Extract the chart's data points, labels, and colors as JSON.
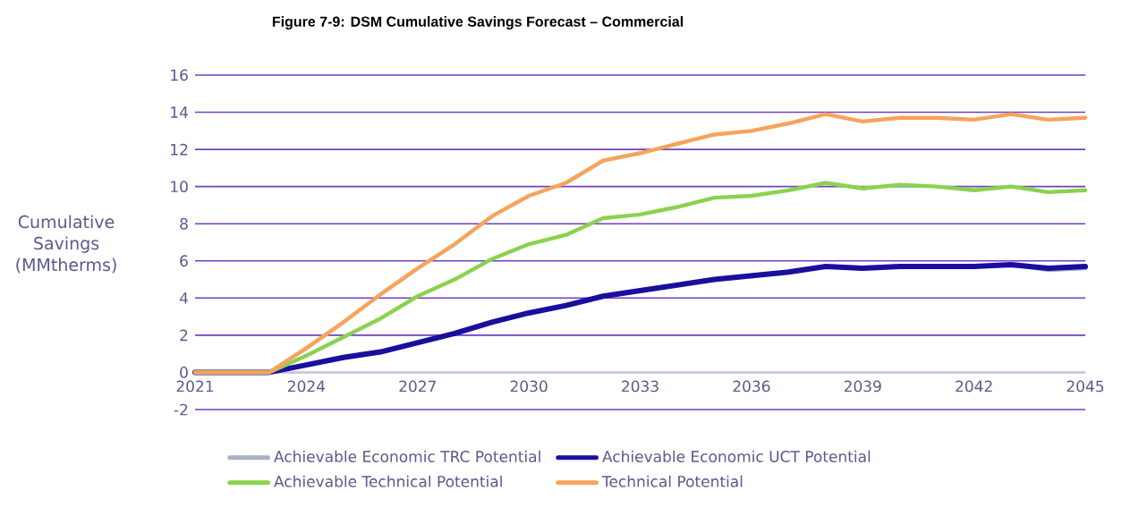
{
  "chart_data": {
    "type": "line",
    "title": "Figure 7-9: DSM Cumulative Savings Forecast – Commercial",
    "ylabel": "Cumulative Savings (MMtherms)",
    "x": [
      2021,
      2022,
      2023,
      2024,
      2025,
      2026,
      2027,
      2028,
      2029,
      2030,
      2031,
      2032,
      2033,
      2034,
      2035,
      2036,
      2037,
      2038,
      2039,
      2040,
      2041,
      2042,
      2043,
      2044,
      2045
    ],
    "series": [
      {
        "name": "Achievable Economic TRC Potential",
        "color": "#a9b1c7",
        "values": [
          null,
          null,
          null,
          null,
          null,
          null,
          null,
          null,
          null,
          null,
          null,
          null,
          null,
          null,
          null,
          null,
          null,
          null,
          null,
          null,
          null,
          null,
          5.8,
          5.5,
          5.6
        ]
      },
      {
        "name": "Achievable Economic UCT Potential",
        "color": "#1a0e9e",
        "values": [
          0,
          0,
          0,
          0.4,
          0.8,
          1.1,
          1.6,
          2.1,
          2.7,
          3.2,
          3.6,
          4.1,
          4.4,
          4.7,
          5.0,
          5.2,
          5.4,
          5.7,
          5.6,
          5.7,
          5.7,
          5.7,
          5.8,
          5.6,
          5.7
        ]
      },
      {
        "name": "Achievable Technical Potential",
        "color": "#8bd24f",
        "values": [
          0,
          0,
          0,
          0.9,
          1.9,
          2.9,
          4.1,
          5.0,
          6.1,
          6.9,
          7.4,
          8.3,
          8.5,
          8.9,
          9.4,
          9.5,
          9.8,
          10.2,
          9.9,
          10.1,
          10.0,
          9.8,
          10.0,
          9.7,
          9.8
        ]
      },
      {
        "name": "Technical Potential",
        "color": "#f7a35c",
        "values": [
          0,
          0,
          0,
          1.3,
          2.7,
          4.2,
          5.6,
          6.9,
          8.4,
          9.5,
          10.2,
          11.4,
          11.8,
          12.3,
          12.8,
          13.0,
          13.4,
          13.9,
          13.5,
          13.7,
          13.7,
          13.6,
          13.9,
          13.6,
          13.7
        ]
      }
    ],
    "xlim": [
      2021,
      2045
    ],
    "xticks": [
      2021,
      2024,
      2027,
      2030,
      2033,
      2036,
      2039,
      2042,
      2045
    ],
    "ylim": [
      -2,
      16
    ],
    "yticks": [
      -2,
      0,
      2,
      4,
      6,
      8,
      10,
      12,
      14,
      16
    ],
    "grid": "y",
    "legend": "bottom",
    "marker": "none",
    "line_style": "solid"
  }
}
